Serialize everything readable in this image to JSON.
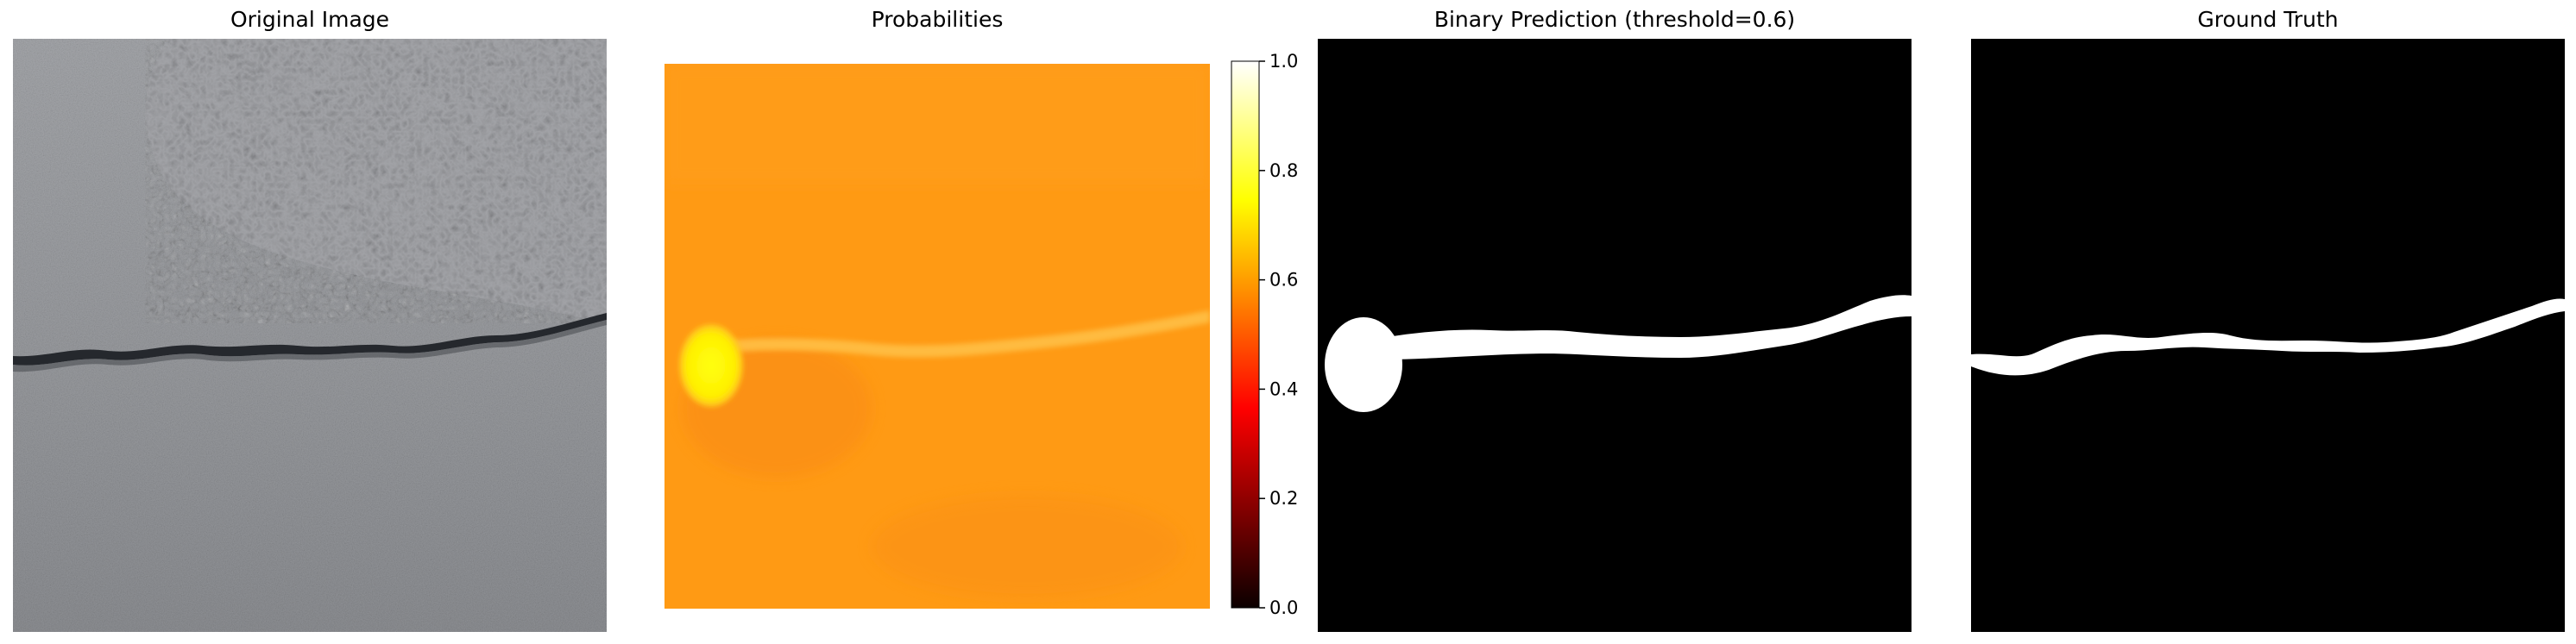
{
  "panels": [
    {
      "title": "Original Image"
    },
    {
      "title": "Probabilities"
    },
    {
      "title": "Binary Prediction (threshold=0.6)"
    },
    {
      "title": "Ground Truth"
    }
  ],
  "colorbar": {
    "ticks": [
      "0.0",
      "0.2",
      "0.4",
      "0.6",
      "0.8",
      "1.0"
    ],
    "colormap": "hot",
    "range": [
      0,
      1
    ]
  },
  "colors": {
    "asphalt_light": "#9a9ca0",
    "asphalt_dark": "#7f8186",
    "crack": "#2b2e33",
    "prob_background": "#ff9a14",
    "prob_crack": "#ffb336",
    "prob_blob": "#fff000",
    "mask_bg": "#000000",
    "mask_fg": "#ffffff"
  }
}
